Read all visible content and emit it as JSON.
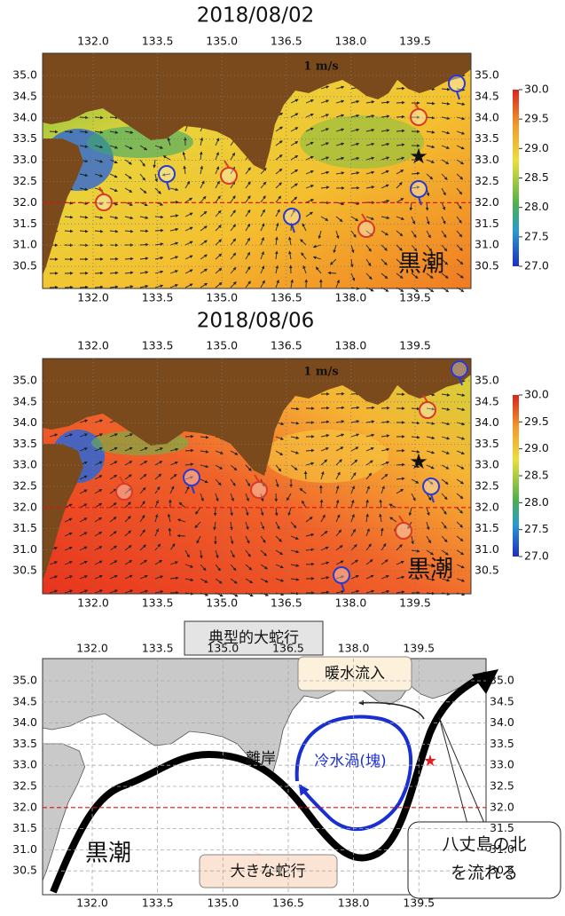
{
  "panels": [
    {
      "title": "2018/08/02",
      "scale_label": "1 m/s",
      "current_label": "黒潮",
      "lon_ticks": [
        {
          "value": 132.0,
          "label": "132.0"
        },
        {
          "value": 133.5,
          "label": "133.5"
        },
        {
          "value": 135.0,
          "label": "135.0"
        },
        {
          "value": 136.5,
          "label": "136.5"
        },
        {
          "value": 138.0,
          "label": "138.0"
        },
        {
          "value": 139.5,
          "label": "139.5"
        }
      ],
      "lat_ticks": [
        {
          "value": 35.0,
          "label": "35.0"
        },
        {
          "value": 34.5,
          "label": "34.5"
        },
        {
          "value": 34.0,
          "label": "34.0"
        },
        {
          "value": 33.5,
          "label": "33.5"
        },
        {
          "value": 33.0,
          "label": "33.0"
        },
        {
          "value": 32.5,
          "label": "32.5"
        },
        {
          "value": 32.0,
          "label": "32.0"
        },
        {
          "value": 31.5,
          "label": "31.5"
        },
        {
          "value": 31.0,
          "label": "31.0"
        },
        {
          "value": 30.5,
          "label": "30.5"
        }
      ],
      "colorbar_ticks": [
        {
          "value": 30.0,
          "label": "30.0"
        },
        {
          "value": 29.5,
          "label": "29.5"
        },
        {
          "value": 29.0,
          "label": "29.0"
        },
        {
          "value": 28.5,
          "label": "28.5"
        },
        {
          "value": 28.0,
          "label": "28.0"
        },
        {
          "value": 27.5,
          "label": "27.5"
        },
        {
          "value": 27.0,
          "label": "27.0"
        }
      ]
    },
    {
      "title": "2018/08/06",
      "scale_label": "1 m/s",
      "current_label": "黒潮",
      "lon_ticks": [
        {
          "value": 132.0,
          "label": "132.0"
        },
        {
          "value": 133.5,
          "label": "133.5"
        },
        {
          "value": 135.0,
          "label": "135.0"
        },
        {
          "value": 136.5,
          "label": "136.5"
        },
        {
          "value": 138.0,
          "label": "138.0"
        },
        {
          "value": 139.5,
          "label": "139.5"
        }
      ],
      "lat_ticks": [
        {
          "value": 35.0,
          "label": "35.0"
        },
        {
          "value": 34.5,
          "label": "34.5"
        },
        {
          "value": 34.0,
          "label": "34.0"
        },
        {
          "value": 33.5,
          "label": "33.5"
        },
        {
          "value": 33.0,
          "label": "33.0"
        },
        {
          "value": 32.5,
          "label": "32.5"
        },
        {
          "value": 32.0,
          "label": "32.0"
        },
        {
          "value": 31.5,
          "label": "31.5"
        },
        {
          "value": 31.0,
          "label": "31.0"
        },
        {
          "value": 30.5,
          "label": "30.5"
        }
      ],
      "colorbar_ticks": [
        {
          "value": 30.0,
          "label": "30.0"
        },
        {
          "value": 29.5,
          "label": "29.5"
        },
        {
          "value": 29.0,
          "label": "29.0"
        },
        {
          "value": 28.5,
          "label": "28.5"
        },
        {
          "value": 28.0,
          "label": "28.0"
        },
        {
          "value": 27.5,
          "label": "27.5"
        },
        {
          "value": 27.0,
          "label": "27.0"
        }
      ]
    }
  ],
  "schematic": {
    "title": "典型的大蛇行",
    "lon_ticks": [
      {
        "value": 132.0,
        "label": "132.0"
      },
      {
        "value": 133.5,
        "label": "133.5"
      },
      {
        "value": 135.0,
        "label": "135.0"
      },
      {
        "value": 136.5,
        "label": "136.5"
      },
      {
        "value": 138.0,
        "label": "138.0"
      },
      {
        "value": 139.5,
        "label": "139.5"
      }
    ],
    "lat_ticks": [
      {
        "value": 35.0,
        "label": "35.0"
      },
      {
        "value": 34.5,
        "label": "34.5"
      },
      {
        "value": 34.0,
        "label": "34.0"
      },
      {
        "value": 33.5,
        "label": "33.5"
      },
      {
        "value": 33.0,
        "label": "33.0"
      },
      {
        "value": 32.5,
        "label": "32.5"
      },
      {
        "value": 32.0,
        "label": "32.0"
      },
      {
        "value": 31.5,
        "label": "31.5"
      },
      {
        "value": 31.0,
        "label": "31.0"
      },
      {
        "value": 30.5,
        "label": "30.5"
      }
    ],
    "warm_inflow": "暖水流入",
    "cold_eddy": "冷水渦(塊)",
    "offshore": "離岸",
    "large_meander": "大きな蛇行",
    "hachijo_note": [
      "八丈島の北",
      "を流れる"
    ],
    "current_label": "黒潮"
  }
}
